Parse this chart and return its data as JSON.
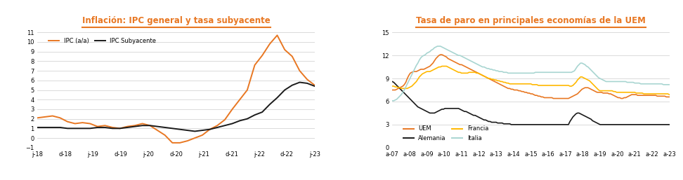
{
  "chart1_title": "Inflación: IPC general y tasa subyacente",
  "chart2_title": "Tasa de paro en principales economías de la UEM",
  "title_color": "#E87722",
  "title_underline_color": "#E87722",
  "chart1_xlabel_ticks": [
    "j-18",
    "d-18",
    "j-19",
    "d-19",
    "j-20",
    "d-20",
    "j-21",
    "d-21",
    "j-22",
    "d-22",
    "j-23"
  ],
  "chart1_ylim": [
    -1,
    11
  ],
  "chart1_yticks": [
    -1,
    0,
    1,
    2,
    3,
    4,
    5,
    6,
    7,
    8,
    9,
    10,
    11
  ],
  "chart2_xlabel_ticks": [
    "a-07",
    "a-08",
    "a-09",
    "a-10",
    "a-11",
    "a-12",
    "a-13",
    "a-14",
    "a-15",
    "a-16",
    "a-17",
    "a-18",
    "a-19",
    "a-20",
    "a-21",
    "a-22",
    "a-23"
  ],
  "chart2_ylim": [
    0,
    15
  ],
  "chart2_yticks": [
    0,
    3,
    6,
    9,
    12,
    15
  ],
  "ipc_color": "#E87722",
  "ipc_sub_color": "#1a1a1a",
  "uem_color": "#E87722",
  "alemania_color": "#1a1a1a",
  "francia_color": "#FFB800",
  "italia_color": "#A8D5D1",
  "background_color": "#ffffff",
  "grid_color": "#cccccc",
  "ipc_data": [
    2.1,
    2.2,
    2.3,
    2.1,
    1.7,
    1.5,
    1.6,
    1.5,
    1.2,
    1.3,
    1.1,
    1.0,
    1.2,
    1.3,
    1.5,
    1.3,
    0.8,
    0.3,
    -0.5,
    -0.5,
    -0.3,
    0.0,
    0.3,
    0.9,
    1.3,
    1.9,
    3.0,
    4.0,
    5.0,
    7.6,
    8.6,
    9.8,
    10.7,
    9.2,
    8.5,
    7.0,
    6.1,
    5.5
  ],
  "ipc_sub_data": [
    1.1,
    1.1,
    1.1,
    1.1,
    1.0,
    1.0,
    1.0,
    1.0,
    1.1,
    1.1,
    1.0,
    1.0,
    1.1,
    1.2,
    1.3,
    1.3,
    1.2,
    1.1,
    1.0,
    0.9,
    0.8,
    0.7,
    0.8,
    0.9,
    1.1,
    1.3,
    1.5,
    1.8,
    2.0,
    2.4,
    2.7,
    3.5,
    4.2,
    5.0,
    5.5,
    5.8,
    5.7,
    5.4
  ],
  "uem_data": [
    7.5,
    7.5,
    7.5,
    7.6,
    7.7,
    7.8,
    7.9,
    8.0,
    8.2,
    8.5,
    9.0,
    9.4,
    9.7,
    9.8,
    9.9,
    9.9,
    9.9,
    10.0,
    10.1,
    10.2,
    10.2,
    10.2,
    10.3,
    10.4,
    10.5,
    10.6,
    10.8,
    11.0,
    11.3,
    11.6,
    11.8,
    12.0,
    12.1,
    12.1,
    12.0,
    11.9,
    11.8,
    11.6,
    11.5,
    11.4,
    11.3,
    11.2,
    11.1,
    11.0,
    10.9,
    10.8,
    10.8,
    10.7,
    10.6,
    10.5,
    10.4,
    10.3,
    10.2,
    10.1,
    10.0,
    9.9,
    9.8,
    9.7,
    9.6,
    9.5,
    9.4,
    9.3,
    9.2,
    9.1,
    9.0,
    8.9,
    8.8,
    8.7,
    8.6,
    8.5,
    8.4,
    8.3,
    8.2,
    8.1,
    8.0,
    7.9,
    7.8,
    7.7,
    7.7,
    7.6,
    7.6,
    7.5,
    7.5,
    7.5,
    7.4,
    7.4,
    7.3,
    7.3,
    7.2,
    7.2,
    7.1,
    7.1,
    7.0,
    7.0,
    6.9,
    6.8,
    6.8,
    6.7,
    6.7,
    6.6,
    6.6,
    6.5,
    6.5,
    6.5,
    6.5,
    6.5,
    6.5,
    6.4,
    6.4,
    6.4,
    6.4,
    6.4,
    6.4,
    6.4,
    6.4,
    6.4,
    6.4,
    6.4,
    6.5,
    6.6,
    6.7,
    6.8,
    6.9,
    7.0,
    7.2,
    7.4,
    7.6,
    7.7,
    7.8,
    7.8,
    7.8,
    7.7,
    7.6,
    7.5,
    7.4,
    7.3,
    7.2,
    7.2,
    7.2,
    7.2,
    7.1,
    7.1,
    7.1,
    7.1,
    7.0,
    7.0,
    6.9,
    6.8,
    6.7,
    6.6,
    6.5,
    6.5,
    6.4,
    6.4,
    6.5,
    6.5,
    6.6,
    6.7,
    6.8,
    6.9,
    6.9,
    6.9,
    6.9,
    6.8,
    6.8,
    6.8,
    6.8,
    6.8,
    6.8,
    6.8,
    6.8,
    6.8,
    6.8,
    6.8,
    6.8,
    6.8,
    6.7,
    6.7,
    6.7,
    6.7,
    6.7,
    6.7,
    6.6,
    6.6,
    6.6
  ],
  "alemania_data": [
    8.6,
    8.5,
    8.3,
    8.1,
    7.9,
    7.7,
    7.5,
    7.3,
    7.1,
    6.9,
    6.7,
    6.5,
    6.3,
    6.1,
    5.9,
    5.7,
    5.5,
    5.3,
    5.2,
    5.1,
    5.0,
    4.9,
    4.8,
    4.7,
    4.6,
    4.5,
    4.5,
    4.5,
    4.5,
    4.6,
    4.7,
    4.8,
    4.9,
    5.0,
    5.0,
    5.1,
    5.1,
    5.1,
    5.1,
    5.1,
    5.1,
    5.1,
    5.1,
    5.1,
    5.1,
    5.0,
    4.9,
    4.8,
    4.7,
    4.7,
    4.6,
    4.5,
    4.4,
    4.3,
    4.2,
    4.2,
    4.1,
    4.0,
    3.9,
    3.8,
    3.7,
    3.6,
    3.6,
    3.5,
    3.4,
    3.4,
    3.3,
    3.3,
    3.3,
    3.3,
    3.2,
    3.2,
    3.2,
    3.2,
    3.1,
    3.1,
    3.1,
    3.1,
    3.1,
    3.0,
    3.0,
    3.0,
    3.0,
    3.0,
    3.0,
    3.0,
    3.0,
    3.0,
    3.0,
    3.0,
    3.0,
    3.0,
    3.0,
    3.0,
    3.0,
    3.0,
    3.0,
    3.0,
    3.0,
    3.0,
    3.0,
    3.0,
    3.0,
    3.0,
    3.0,
    3.0,
    3.0,
    3.0,
    3.0,
    3.0,
    3.0,
    3.0,
    3.0,
    3.0,
    3.0,
    3.0,
    3.0,
    3.0,
    3.4,
    3.7,
    4.0,
    4.2,
    4.4,
    4.5,
    4.5,
    4.4,
    4.3,
    4.2,
    4.1,
    4.0,
    3.9,
    3.8,
    3.7,
    3.5,
    3.4,
    3.3,
    3.2,
    3.1,
    3.0,
    3.0,
    3.0,
    3.0,
    3.0,
    3.0,
    3.0,
    3.0,
    3.0,
    3.0,
    3.0,
    3.0,
    3.0,
    3.0,
    3.0,
    3.0,
    3.0,
    3.0,
    3.0,
    3.0,
    3.0,
    3.0,
    3.0,
    3.0,
    3.0,
    3.0,
    3.0,
    3.0,
    3.0,
    3.0,
    3.0,
    3.0,
    3.0,
    3.0,
    3.0,
    3.0,
    3.0,
    3.0,
    3.0,
    3.0,
    3.0,
    3.0,
    3.0,
    3.0,
    3.0,
    3.0,
    3.0
  ],
  "francia_data": [
    8.0,
    8.0,
    7.9,
    7.9,
    7.8,
    7.8,
    7.7,
    7.7,
    7.7,
    7.7,
    7.7,
    7.8,
    7.9,
    8.0,
    8.2,
    8.4,
    8.6,
    8.9,
    9.2,
    9.4,
    9.6,
    9.7,
    9.8,
    9.9,
    9.9,
    9.9,
    10.0,
    10.1,
    10.2,
    10.3,
    10.4,
    10.5,
    10.5,
    10.6,
    10.6,
    10.6,
    10.6,
    10.5,
    10.4,
    10.3,
    10.2,
    10.1,
    10.0,
    9.9,
    9.8,
    9.8,
    9.7,
    9.7,
    9.7,
    9.7,
    9.7,
    9.8,
    9.8,
    9.8,
    9.8,
    9.8,
    9.7,
    9.7,
    9.6,
    9.5,
    9.4,
    9.3,
    9.2,
    9.1,
    9.0,
    9.0,
    8.9,
    8.9,
    8.8,
    8.8,
    8.7,
    8.7,
    8.6,
    8.6,
    8.5,
    8.5,
    8.4,
    8.4,
    8.3,
    8.3,
    8.3,
    8.3,
    8.3,
    8.3,
    8.3,
    8.3,
    8.3,
    8.3,
    8.3,
    8.3,
    8.3,
    8.3,
    8.3,
    8.2,
    8.2,
    8.2,
    8.2,
    8.1,
    8.1,
    8.1,
    8.1,
    8.1,
    8.1,
    8.1,
    8.1,
    8.1,
    8.1,
    8.1,
    8.1,
    8.1,
    8.1,
    8.1,
    8.1,
    8.1,
    8.1,
    8.1,
    8.1,
    8.1,
    8.0,
    8.0,
    8.1,
    8.3,
    8.5,
    8.8,
    9.0,
    9.2,
    9.2,
    9.1,
    9.0,
    8.9,
    8.8,
    8.7,
    8.5,
    8.3,
    8.1,
    7.9,
    7.7,
    7.5,
    7.4,
    7.4,
    7.4,
    7.4,
    7.4,
    7.4,
    7.4,
    7.4,
    7.4,
    7.3,
    7.3,
    7.2,
    7.2,
    7.2,
    7.2,
    7.2,
    7.2,
    7.2,
    7.2,
    7.2,
    7.2,
    7.2,
    7.2,
    7.2,
    7.1,
    7.1,
    7.1,
    7.1,
    7.1,
    7.0,
    7.0,
    7.0,
    7.0,
    7.0,
    7.0,
    7.0,
    7.0,
    7.0,
    7.0,
    7.0,
    7.0,
    7.0,
    7.0,
    7.0,
    7.0,
    7.0,
    6.9,
    6.9
  ],
  "italia_data": [
    6.1,
    6.1,
    6.2,
    6.3,
    6.5,
    6.7,
    6.9,
    7.2,
    7.5,
    7.9,
    8.3,
    8.7,
    9.1,
    9.5,
    9.9,
    10.3,
    10.7,
    11.0,
    11.4,
    11.7,
    11.9,
    12.0,
    12.1,
    12.3,
    12.4,
    12.5,
    12.7,
    12.8,
    13.0,
    13.1,
    13.2,
    13.2,
    13.2,
    13.1,
    13.0,
    12.9,
    12.8,
    12.7,
    12.6,
    12.5,
    12.4,
    12.3,
    12.2,
    12.1,
    12.0,
    12.0,
    11.9,
    11.8,
    11.7,
    11.6,
    11.5,
    11.4,
    11.3,
    11.2,
    11.1,
    11.0,
    10.9,
    10.8,
    10.7,
    10.6,
    10.5,
    10.5,
    10.4,
    10.3,
    10.3,
    10.2,
    10.2,
    10.1,
    10.1,
    10.0,
    10.0,
    9.9,
    9.9,
    9.9,
    9.8,
    9.8,
    9.8,
    9.7,
    9.7,
    9.7,
    9.7,
    9.7,
    9.7,
    9.7,
    9.7,
    9.7,
    9.7,
    9.7,
    9.7,
    9.7,
    9.7,
    9.7,
    9.7,
    9.7,
    9.7,
    9.8,
    9.8,
    9.8,
    9.8,
    9.8,
    9.8,
    9.8,
    9.8,
    9.8,
    9.8,
    9.8,
    9.8,
    9.8,
    9.8,
    9.8,
    9.8,
    9.8,
    9.8,
    9.8,
    9.8,
    9.8,
    9.8,
    9.8,
    9.8,
    9.8,
    9.9,
    10.0,
    10.3,
    10.6,
    10.8,
    11.0,
    11.0,
    10.9,
    10.8,
    10.6,
    10.5,
    10.3,
    10.1,
    9.9,
    9.7,
    9.5,
    9.3,
    9.1,
    9.0,
    8.9,
    8.8,
    8.7,
    8.6,
    8.6,
    8.6,
    8.6,
    8.6,
    8.6,
    8.6,
    8.6,
    8.6,
    8.6,
    8.6,
    8.6,
    8.6,
    8.6,
    8.5,
    8.5,
    8.5,
    8.5,
    8.5,
    8.4,
    8.4,
    8.4,
    8.4,
    8.3,
    8.3,
    8.3,
    8.3,
    8.3,
    8.3,
    8.3,
    8.3,
    8.3,
    8.3,
    8.3,
    8.3,
    8.3,
    8.3,
    8.3,
    8.2,
    8.2,
    8.2,
    8.2,
    8.2,
    8.1
  ]
}
